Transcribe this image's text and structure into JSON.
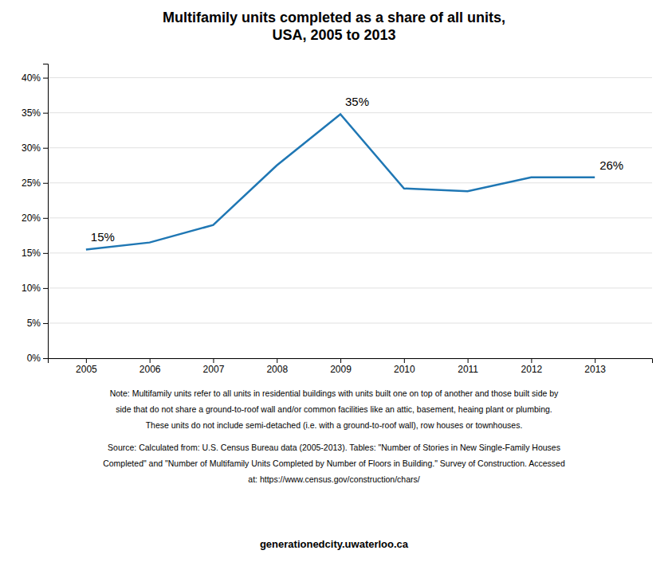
{
  "chart_data": {
    "type": "line",
    "title": "Multifamily units completed as a share of all units,\nUSA, 2005 to 2013",
    "x": [
      2005,
      2006,
      2007,
      2008,
      2009,
      2010,
      2011,
      2012,
      2013
    ],
    "values": [
      0.155,
      0.165,
      0.19,
      0.275,
      0.348,
      0.242,
      0.238,
      0.258,
      0.258
    ],
    "xlim": [
      2004.4,
      2013.9
    ],
    "xticks": [
      2005,
      2006,
      2007,
      2008,
      2009,
      2010,
      2011,
      2012,
      2013
    ],
    "ylim": [
      0,
      0.42
    ],
    "yticks": [
      {
        "value": 0.0,
        "label": "0%"
      },
      {
        "value": 0.05,
        "label": "5%"
      },
      {
        "value": 0.1,
        "label": "10%"
      },
      {
        "value": 0.15,
        "label": "15%"
      },
      {
        "value": 0.2,
        "label": "20%"
      },
      {
        "value": 0.25,
        "label": "25%"
      },
      {
        "value": 0.3,
        "label": "30%"
      },
      {
        "value": 0.35,
        "label": "35%"
      },
      {
        "value": 0.4,
        "label": "40%"
      }
    ],
    "grid": true,
    "annotations": [
      {
        "text": "15%",
        "x": 2005,
        "y": 0.155
      },
      {
        "text": "35%",
        "x": 2009,
        "y": 0.348
      },
      {
        "text": "26%",
        "x": 2013,
        "y": 0.258
      }
    ],
    "notes": [
      "Note: Multifamily units refer to all units in residential buildings with units built one on top of another and those built side by",
      "side that do not share a ground-to-roof wall and/or common facilities like an attic, basement, heaing plant or plumbing.",
      "These units do not include semi-detached (i.e. with a ground-to-roof wall), row houses or townhouses."
    ],
    "source": [
      "Source: Calculated from: U.S. Census Bureau data (2005-2013). Tables: \"Number of Stories in New Single-Family Houses",
      "Completed\" and \"Number of Multifamily Units Completed by Number of Floors in Building.\" Survey of Construction. Accessed",
      "at: https://www.census.gov/construction/chars/"
    ],
    "website": "generationedcity.uwaterloo.ca"
  }
}
